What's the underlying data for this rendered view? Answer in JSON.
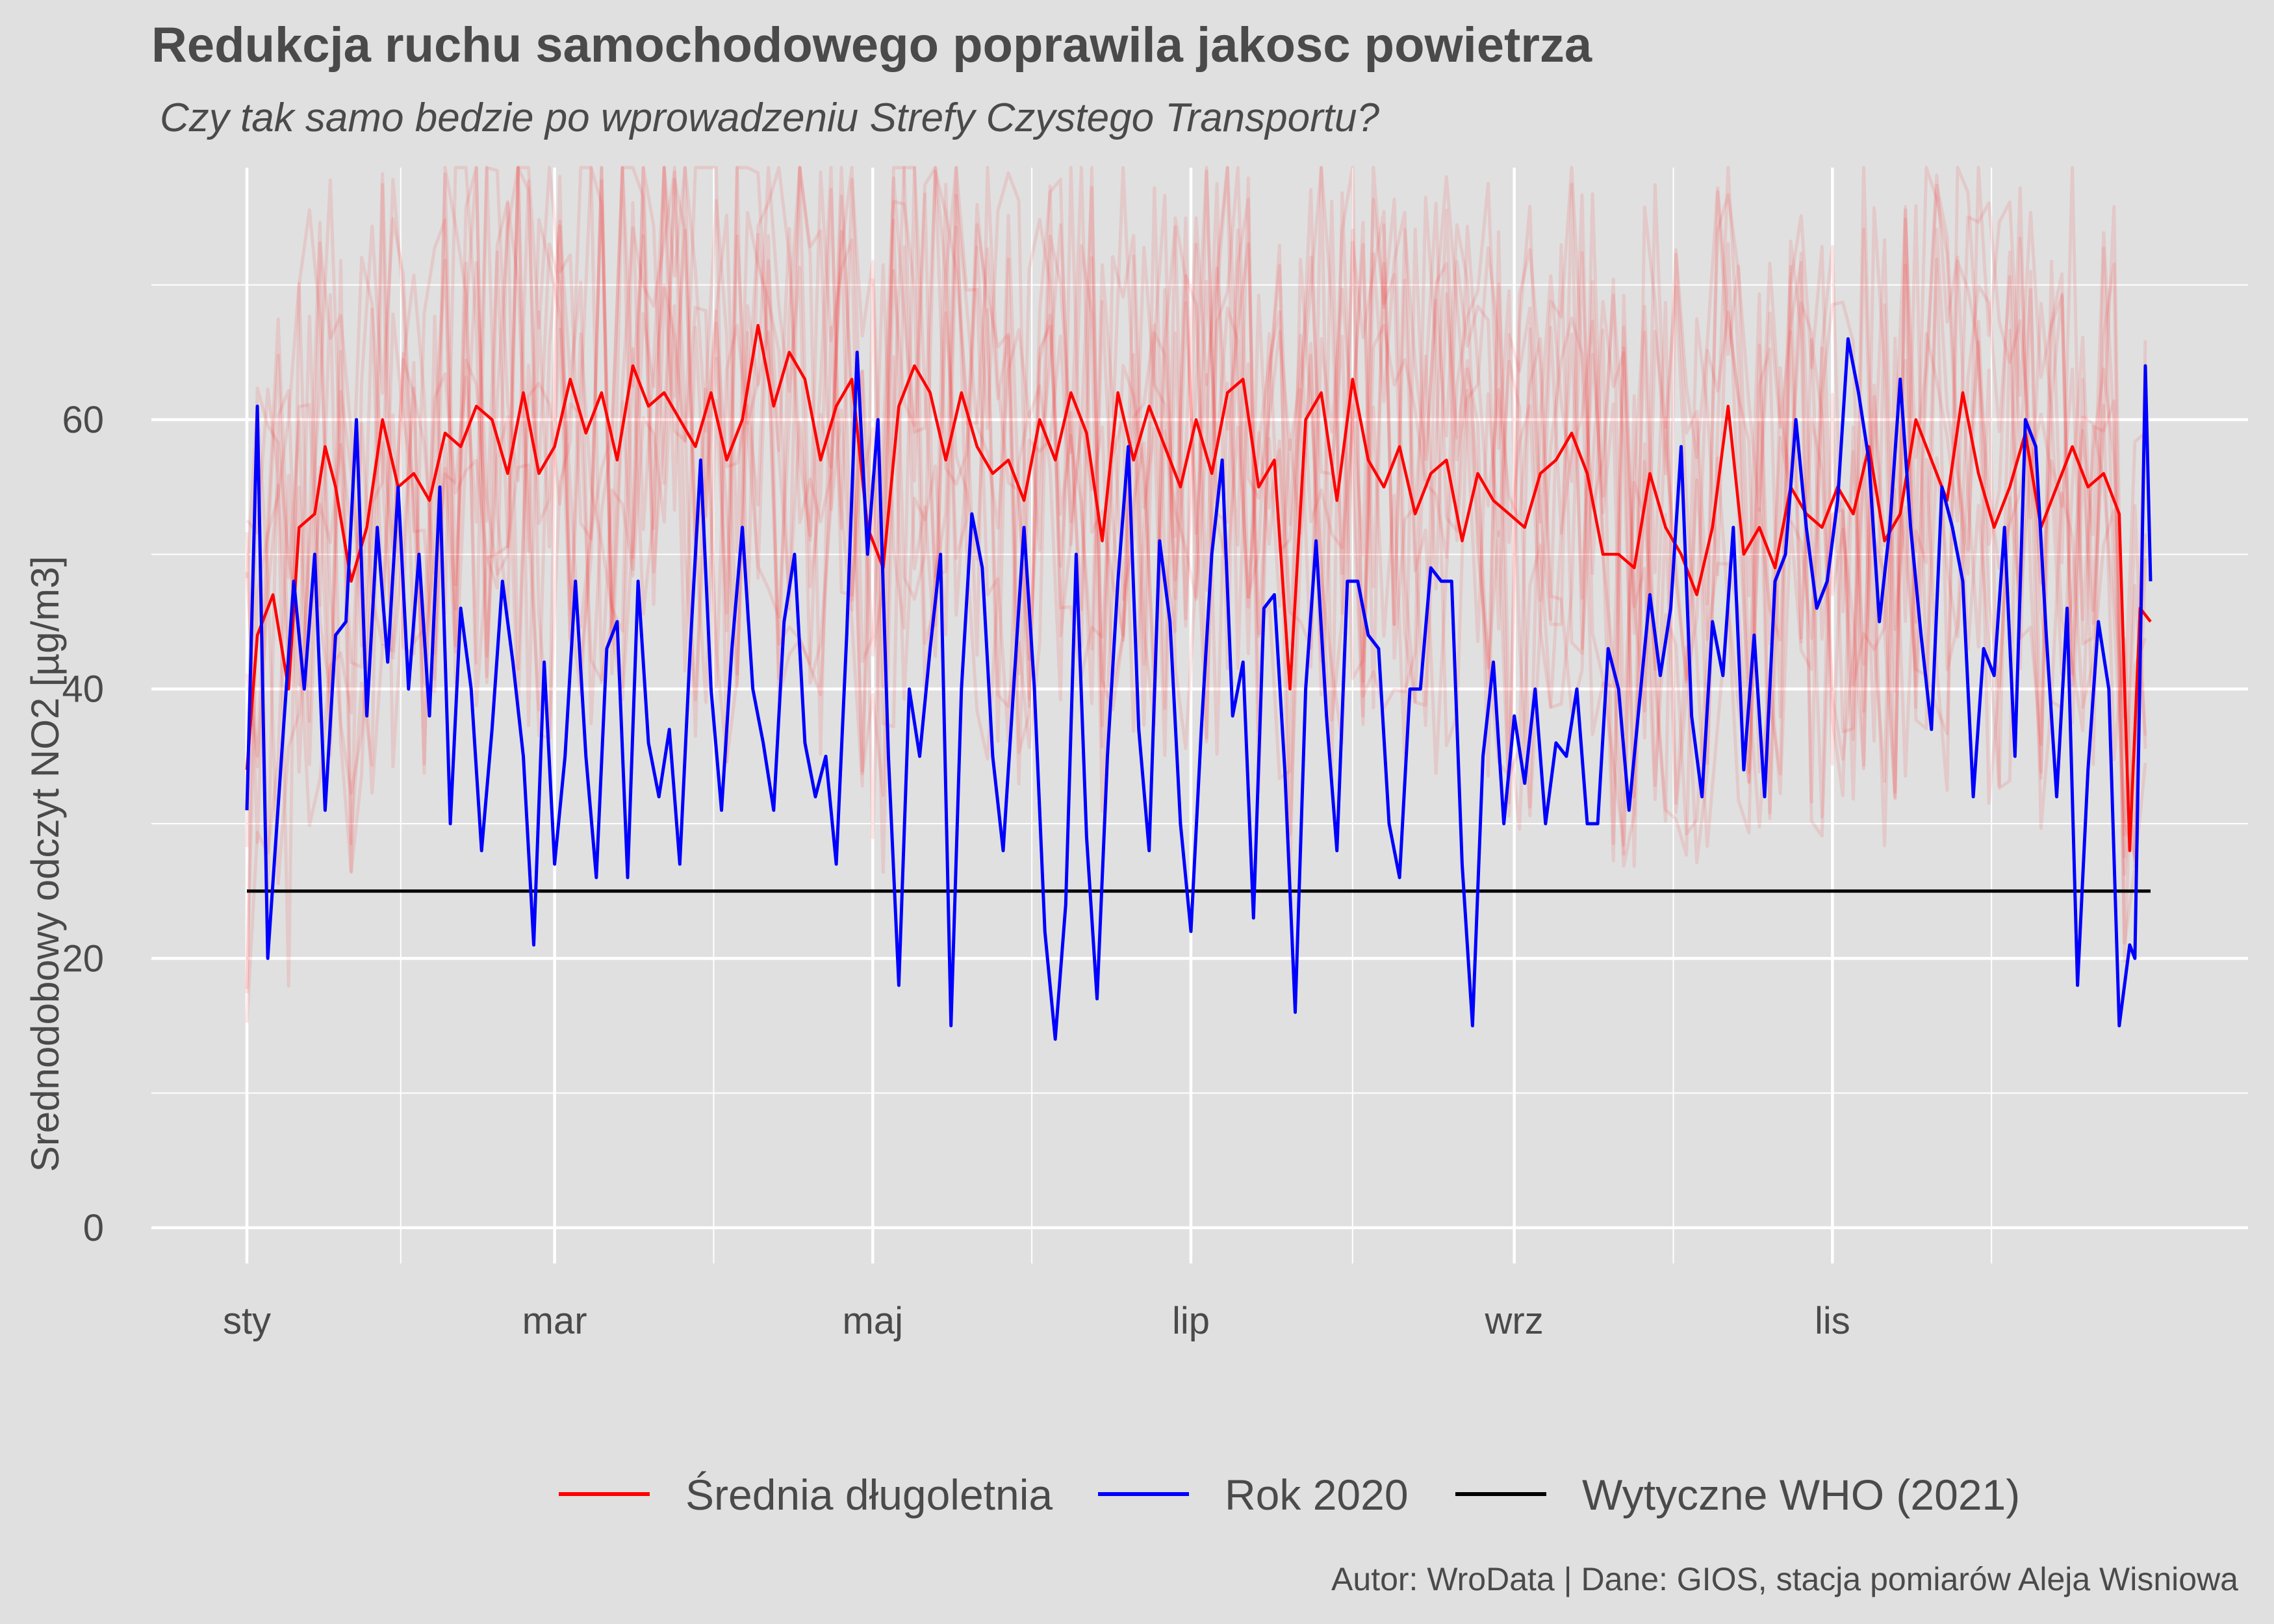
{
  "chart_data": {
    "type": "line",
    "title": "Redukcja ruchu samochodowego poprawila jakosc powietrza",
    "subtitle": "Czy tak samo bedzie po wprowadzeniu Strefy Czystego Transportu?",
    "caption": "Autor: WroData | Dane: GIOS, stacja pomiarów Aleja Wisniowa",
    "ylabel": "Srednodobowy odczyt NO2 [µg/m3]",
    "xlabel": "",
    "x_unit": "day of year",
    "xlim": [
      1,
      366
    ],
    "ylim": [
      0,
      79
    ],
    "y_ticks": [
      0,
      20,
      40,
      60
    ],
    "x_ticks": [
      {
        "label": "sty",
        "day": 1
      },
      {
        "label": "mar",
        "day": 60
      },
      {
        "label": "maj",
        "day": 121
      },
      {
        "label": "lip",
        "day": 182
      },
      {
        "label": "wrz",
        "day": 244
      },
      {
        "label": "lis",
        "day": 305
      }
    ],
    "grid": true,
    "legend_position": "bottom",
    "background_series_note": "faint red lines: individual years of daily readings",
    "series": [
      {
        "name": "Średnia długoletnia",
        "color": "#ff0000",
        "points": [
          [
            1,
            34
          ],
          [
            3,
            44
          ],
          [
            6,
            47
          ],
          [
            9,
            40
          ],
          [
            11,
            52
          ],
          [
            14,
            53
          ],
          [
            16,
            58
          ],
          [
            18,
            55
          ],
          [
            21,
            48
          ],
          [
            24,
            52
          ],
          [
            27,
            60
          ],
          [
            30,
            55
          ],
          [
            33,
            56
          ],
          [
            36,
            54
          ],
          [
            39,
            59
          ],
          [
            42,
            58
          ],
          [
            45,
            61
          ],
          [
            48,
            60
          ],
          [
            51,
            56
          ],
          [
            54,
            62
          ],
          [
            57,
            56
          ],
          [
            60,
            58
          ],
          [
            63,
            63
          ],
          [
            66,
            59
          ],
          [
            69,
            62
          ],
          [
            72,
            57
          ],
          [
            75,
            64
          ],
          [
            78,
            61
          ],
          [
            81,
            62
          ],
          [
            84,
            60
          ],
          [
            87,
            58
          ],
          [
            90,
            62
          ],
          [
            93,
            57
          ],
          [
            96,
            60
          ],
          [
            99,
            67
          ],
          [
            102,
            61
          ],
          [
            105,
            65
          ],
          [
            108,
            63
          ],
          [
            111,
            57
          ],
          [
            114,
            61
          ],
          [
            117,
            63
          ],
          [
            120,
            52
          ],
          [
            123,
            49
          ],
          [
            126,
            61
          ],
          [
            129,
            64
          ],
          [
            132,
            62
          ],
          [
            135,
            57
          ],
          [
            138,
            62
          ],
          [
            141,
            58
          ],
          [
            144,
            56
          ],
          [
            147,
            57
          ],
          [
            150,
            54
          ],
          [
            153,
            60
          ],
          [
            156,
            57
          ],
          [
            159,
            62
          ],
          [
            162,
            59
          ],
          [
            165,
            51
          ],
          [
            168,
            62
          ],
          [
            171,
            57
          ],
          [
            174,
            61
          ],
          [
            177,
            58
          ],
          [
            180,
            55
          ],
          [
            183,
            60
          ],
          [
            186,
            56
          ],
          [
            189,
            62
          ],
          [
            192,
            63
          ],
          [
            195,
            55
          ],
          [
            198,
            57
          ],
          [
            201,
            40
          ],
          [
            204,
            60
          ],
          [
            207,
            62
          ],
          [
            210,
            54
          ],
          [
            213,
            63
          ],
          [
            216,
            57
          ],
          [
            219,
            55
          ],
          [
            222,
            58
          ],
          [
            225,
            53
          ],
          [
            228,
            56
          ],
          [
            231,
            57
          ],
          [
            234,
            51
          ],
          [
            237,
            56
          ],
          [
            240,
            54
          ],
          [
            243,
            53
          ],
          [
            246,
            52
          ],
          [
            249,
            56
          ],
          [
            252,
            57
          ],
          [
            255,
            59
          ],
          [
            258,
            56
          ],
          [
            261,
            50
          ],
          [
            264,
            50
          ],
          [
            267,
            49
          ],
          [
            270,
            56
          ],
          [
            273,
            52
          ],
          [
            276,
            50
          ],
          [
            279,
            47
          ],
          [
            282,
            52
          ],
          [
            285,
            61
          ],
          [
            288,
            50
          ],
          [
            291,
            52
          ],
          [
            294,
            49
          ],
          [
            297,
            55
          ],
          [
            300,
            53
          ],
          [
            303,
            52
          ],
          [
            306,
            55
          ],
          [
            309,
            53
          ],
          [
            312,
            58
          ],
          [
            315,
            51
          ],
          [
            318,
            53
          ],
          [
            321,
            60
          ],
          [
            324,
            57
          ],
          [
            327,
            54
          ],
          [
            330,
            62
          ],
          [
            333,
            56
          ],
          [
            336,
            52
          ],
          [
            339,
            55
          ],
          [
            342,
            59
          ],
          [
            345,
            52
          ],
          [
            348,
            55
          ],
          [
            351,
            58
          ],
          [
            354,
            55
          ],
          [
            357,
            56
          ],
          [
            360,
            53
          ],
          [
            362,
            28
          ],
          [
            364,
            46
          ],
          [
            366,
            45
          ]
        ]
      },
      {
        "name": "Rok 2020",
        "color": "#0000ff",
        "points": [
          [
            1,
            31
          ],
          [
            3,
            61
          ],
          [
            5,
            20
          ],
          [
            8,
            37
          ],
          [
            10,
            48
          ],
          [
            12,
            40
          ],
          [
            14,
            50
          ],
          [
            16,
            31
          ],
          [
            18,
            44
          ],
          [
            20,
            45
          ],
          [
            22,
            60
          ],
          [
            24,
            38
          ],
          [
            26,
            52
          ],
          [
            28,
            42
          ],
          [
            30,
            55
          ],
          [
            32,
            40
          ],
          [
            34,
            50
          ],
          [
            36,
            38
          ],
          [
            38,
            55
          ],
          [
            40,
            30
          ],
          [
            42,
            46
          ],
          [
            44,
            40
          ],
          [
            46,
            28
          ],
          [
            48,
            37
          ],
          [
            50,
            48
          ],
          [
            52,
            42
          ],
          [
            54,
            35
          ],
          [
            56,
            21
          ],
          [
            58,
            42
          ],
          [
            60,
            27
          ],
          [
            62,
            35
          ],
          [
            64,
            48
          ],
          [
            66,
            35
          ],
          [
            68,
            26
          ],
          [
            70,
            43
          ],
          [
            72,
            45
          ],
          [
            74,
            26
          ],
          [
            76,
            48
          ],
          [
            78,
            36
          ],
          [
            80,
            32
          ],
          [
            82,
            37
          ],
          [
            84,
            27
          ],
          [
            86,
            43
          ],
          [
            88,
            57
          ],
          [
            90,
            40
          ],
          [
            92,
            31
          ],
          [
            94,
            43
          ],
          [
            96,
            52
          ],
          [
            98,
            40
          ],
          [
            100,
            36
          ],
          [
            102,
            31
          ],
          [
            104,
            45
          ],
          [
            106,
            50
          ],
          [
            108,
            36
          ],
          [
            110,
            32
          ],
          [
            112,
            35
          ],
          [
            114,
            27
          ],
          [
            116,
            44
          ],
          [
            118,
            65
          ],
          [
            120,
            50
          ],
          [
            122,
            60
          ],
          [
            124,
            35
          ],
          [
            126,
            18
          ],
          [
            128,
            40
          ],
          [
            130,
            35
          ],
          [
            132,
            43
          ],
          [
            134,
            50
          ],
          [
            136,
            15
          ],
          [
            138,
            40
          ],
          [
            140,
            53
          ],
          [
            142,
            49
          ],
          [
            144,
            35
          ],
          [
            146,
            28
          ],
          [
            148,
            40
          ],
          [
            150,
            52
          ],
          [
            152,
            40
          ],
          [
            154,
            22
          ],
          [
            156,
            14
          ],
          [
            158,
            24
          ],
          [
            160,
            50
          ],
          [
            162,
            29
          ],
          [
            164,
            17
          ],
          [
            166,
            35
          ],
          [
            168,
            48
          ],
          [
            170,
            58
          ],
          [
            172,
            37
          ],
          [
            174,
            28
          ],
          [
            176,
            51
          ],
          [
            178,
            45
          ],
          [
            180,
            30
          ],
          [
            182,
            22
          ],
          [
            184,
            37
          ],
          [
            186,
            50
          ],
          [
            188,
            57
          ],
          [
            190,
            38
          ],
          [
            192,
            42
          ],
          [
            194,
            23
          ],
          [
            196,
            46
          ],
          [
            198,
            47
          ],
          [
            200,
            34
          ],
          [
            202,
            16
          ],
          [
            204,
            40
          ],
          [
            206,
            51
          ],
          [
            208,
            38
          ],
          [
            210,
            28
          ],
          [
            212,
            48
          ],
          [
            214,
            48
          ],
          [
            216,
            44
          ],
          [
            218,
            43
          ],
          [
            220,
            30
          ],
          [
            222,
            26
          ],
          [
            224,
            40
          ],
          [
            226,
            40
          ],
          [
            228,
            49
          ],
          [
            230,
            48
          ],
          [
            232,
            48
          ],
          [
            234,
            27
          ],
          [
            236,
            15
          ],
          [
            238,
            35
          ],
          [
            240,
            42
          ],
          [
            242,
            30
          ],
          [
            244,
            38
          ],
          [
            246,
            33
          ],
          [
            248,
            40
          ],
          [
            250,
            30
          ],
          [
            252,
            36
          ],
          [
            254,
            35
          ],
          [
            256,
            40
          ],
          [
            258,
            30
          ],
          [
            260,
            30
          ],
          [
            262,
            43
          ],
          [
            264,
            40
          ],
          [
            266,
            31
          ],
          [
            268,
            39
          ],
          [
            270,
            47
          ],
          [
            272,
            41
          ],
          [
            274,
            46
          ],
          [
            276,
            58
          ],
          [
            278,
            38
          ],
          [
            280,
            32
          ],
          [
            282,
            45
          ],
          [
            284,
            41
          ],
          [
            286,
            52
          ],
          [
            288,
            34
          ],
          [
            290,
            44
          ],
          [
            292,
            32
          ],
          [
            294,
            48
          ],
          [
            296,
            50
          ],
          [
            298,
            60
          ],
          [
            300,
            52
          ],
          [
            302,
            46
          ],
          [
            304,
            48
          ],
          [
            306,
            54
          ],
          [
            308,
            66
          ],
          [
            310,
            62
          ],
          [
            312,
            57
          ],
          [
            314,
            45
          ],
          [
            316,
            52
          ],
          [
            318,
            63
          ],
          [
            320,
            52
          ],
          [
            322,
            44
          ],
          [
            324,
            37
          ],
          [
            326,
            55
          ],
          [
            328,
            52
          ],
          [
            330,
            48
          ],
          [
            332,
            32
          ],
          [
            334,
            43
          ],
          [
            336,
            41
          ],
          [
            338,
            52
          ],
          [
            340,
            35
          ],
          [
            342,
            60
          ],
          [
            344,
            58
          ],
          [
            346,
            44
          ],
          [
            348,
            32
          ],
          [
            350,
            46
          ],
          [
            352,
            18
          ],
          [
            354,
            34
          ],
          [
            356,
            45
          ],
          [
            358,
            40
          ],
          [
            360,
            15
          ],
          [
            362,
            21
          ],
          [
            363,
            20
          ],
          [
            365,
            64
          ],
          [
            366,
            48
          ]
        ]
      },
      {
        "name": "Wytyczne WHO (2021)",
        "color": "#000000",
        "points": [
          [
            1,
            25
          ],
          [
            366,
            25
          ]
        ]
      }
    ]
  }
}
